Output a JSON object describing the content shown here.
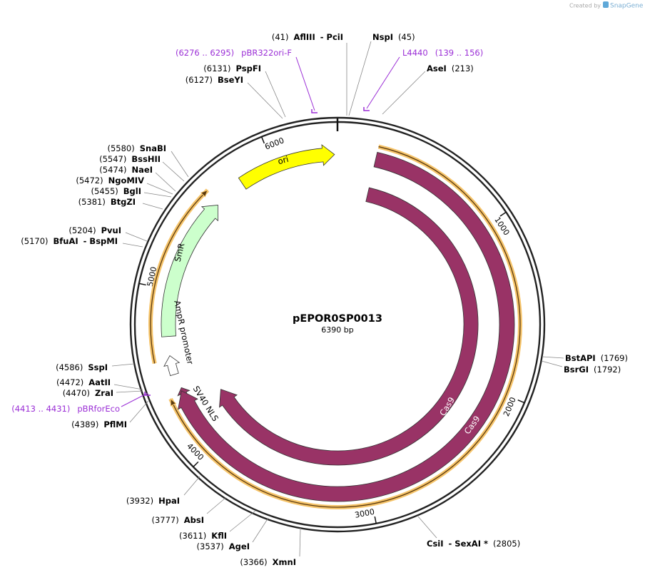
{
  "branding": {
    "prefix": "Created by",
    "name": "SnapGene"
  },
  "plasmid": {
    "name": "pEPOR0SP0013",
    "length": "6390 bp"
  },
  "ticks": [
    "1000",
    "2000",
    "3000",
    "4000",
    "5000",
    "6000"
  ],
  "features": [
    {
      "label": "ori"
    },
    {
      "label": "SmR"
    },
    {
      "label": "AmpR promoter"
    },
    {
      "label": "SV40 NLS"
    },
    {
      "label": "Cas9"
    },
    {
      "label": "Cas9"
    }
  ],
  "sites": [
    {
      "position": "(41)",
      "name": "AflIII",
      "also": "- PciI"
    },
    {
      "position": "(45)",
      "name": "NspI"
    },
    {
      "position": "(213)",
      "name": "AseI"
    },
    {
      "position": "(1769)",
      "name": "BstAPI"
    },
    {
      "position": "(1792)",
      "name": "BsrGI"
    },
    {
      "position": "(2805)",
      "name": "CsiI",
      "also": "- SexAI *"
    },
    {
      "position": "(3366)",
      "name": "XmnI"
    },
    {
      "position": "(3537)",
      "name": "AgeI"
    },
    {
      "position": "(3611)",
      "name": "KflI"
    },
    {
      "position": "(3777)",
      "name": "AbsI"
    },
    {
      "position": "(3932)",
      "name": "HpaI"
    },
    {
      "position": "(4389)",
      "name": "PflMI"
    },
    {
      "position": "(4470)",
      "name": "ZraI"
    },
    {
      "position": "(4472)",
      "name": "AatII"
    },
    {
      "position": "(4586)",
      "name": "SspI"
    },
    {
      "position": "(5170)",
      "name": "BfuAI",
      "also": "- BspMI"
    },
    {
      "position": "(5204)",
      "name": "PvuI"
    },
    {
      "position": "(5381)",
      "name": "BtgZI"
    },
    {
      "position": "(5455)",
      "name": "BglI"
    },
    {
      "position": "(5472)",
      "name": "NgoMIV"
    },
    {
      "position": "(5474)",
      "name": "NaeI"
    },
    {
      "position": "(5547)",
      "name": "BssHII"
    },
    {
      "position": "(5580)",
      "name": "SnaBI"
    },
    {
      "position": "(6127)",
      "name": "BseYI"
    },
    {
      "position": "(6131)",
      "name": "PspFI"
    }
  ],
  "primers": [
    {
      "range": "(6276 .. 6295)",
      "name": "pBR322ori-F"
    },
    {
      "range": "(139 .. 156)",
      "name": "L4440"
    },
    {
      "range": "(4413 .. 4431)",
      "name": "pBRforEco"
    }
  ]
}
